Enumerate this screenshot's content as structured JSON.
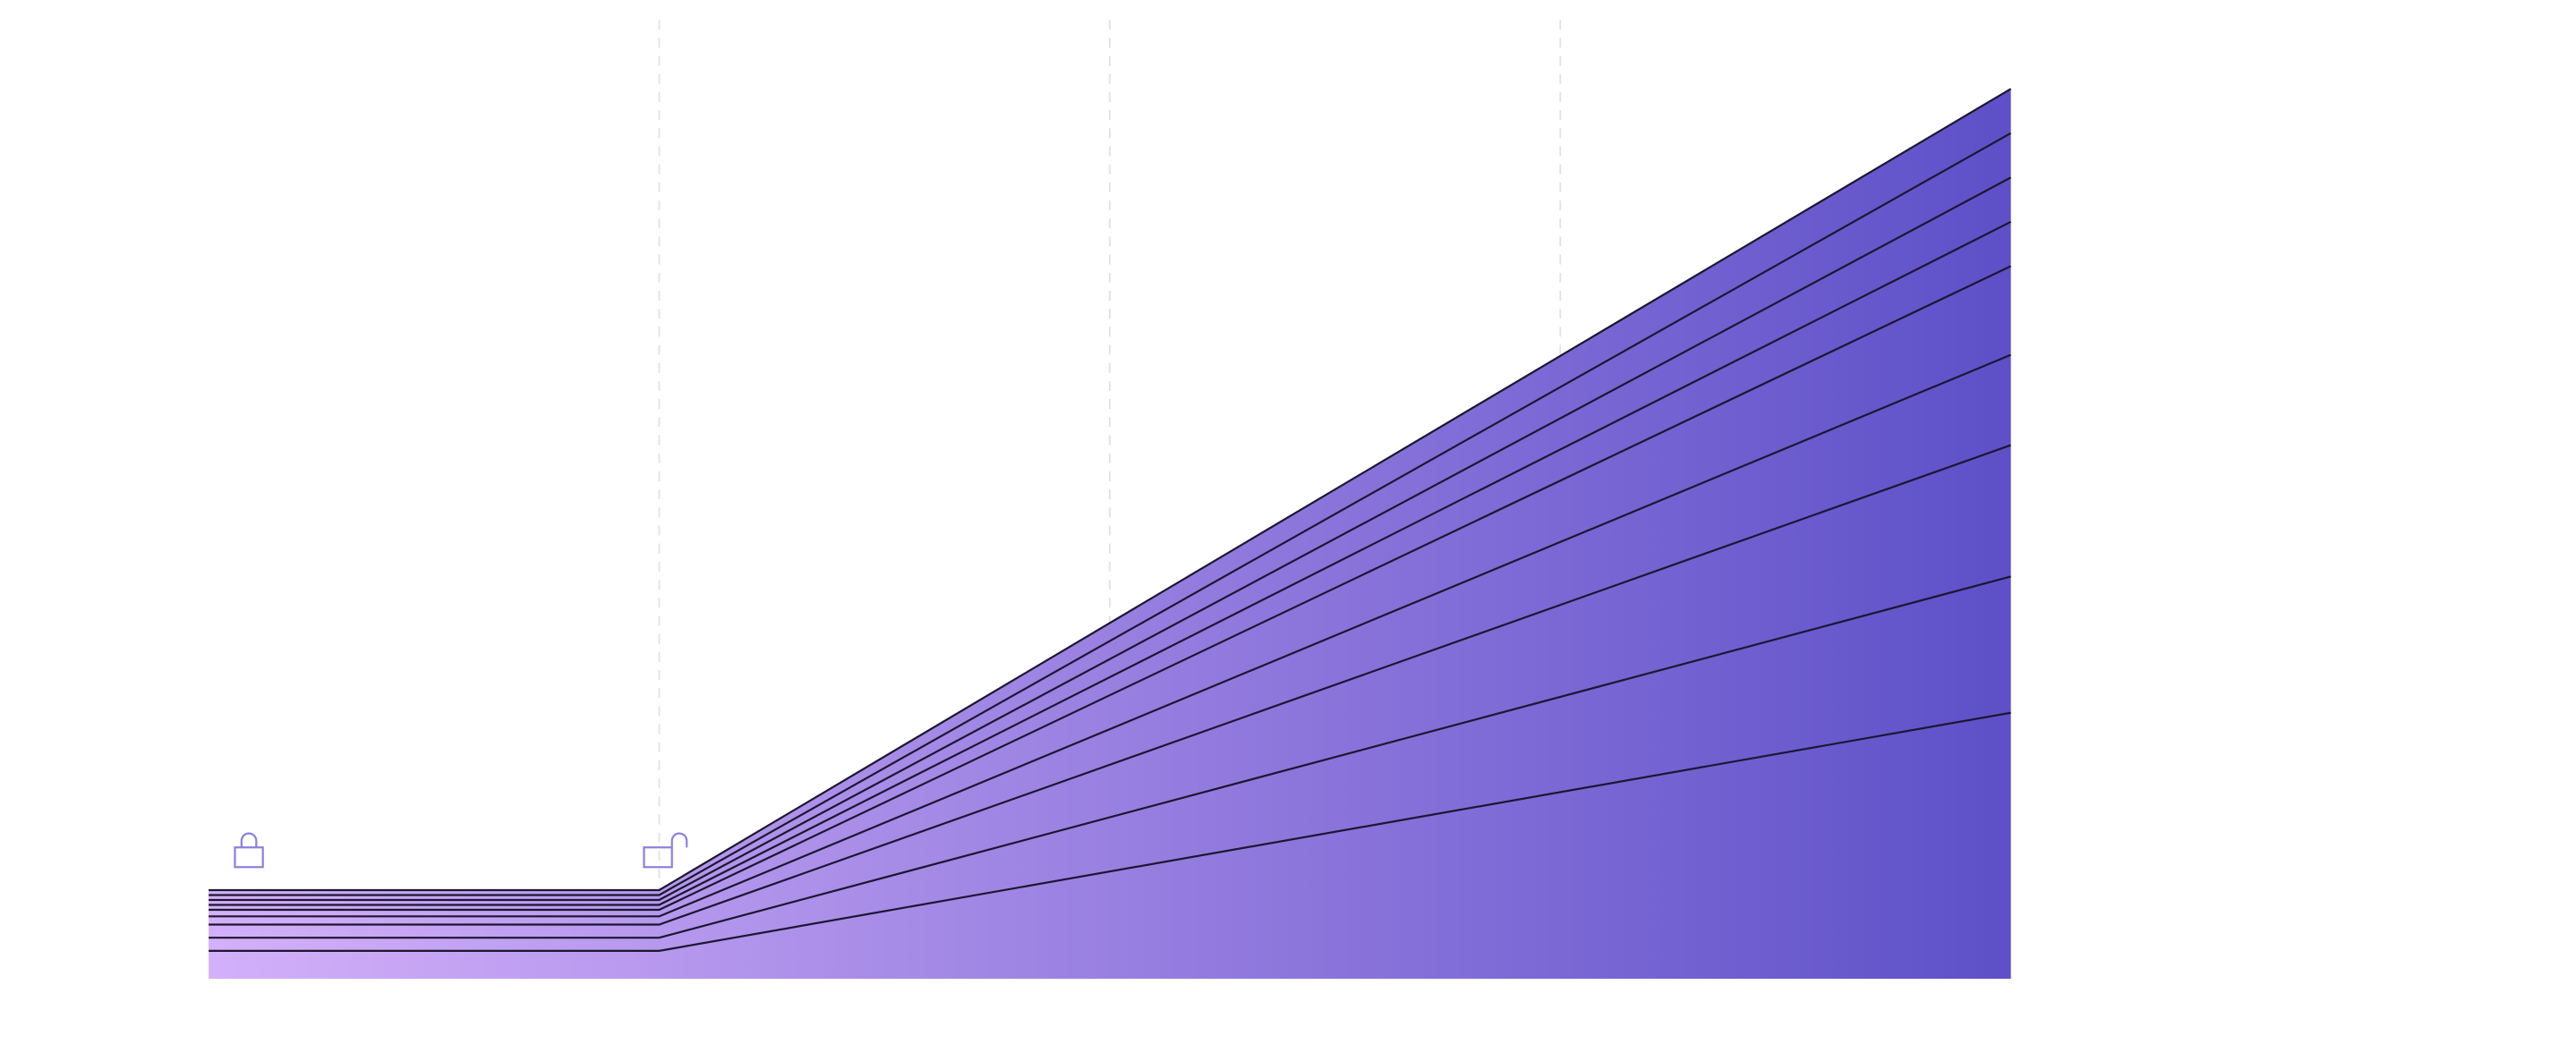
{
  "chart_data": {
    "type": "line",
    "x": [
      0,
      1,
      4
    ],
    "xlim": [
      0,
      4
    ],
    "xticks": [
      1,
      2,
      3
    ],
    "ylim": [
      0,
      584
    ],
    "grid": true,
    "fill_gradient": [
      "#d4b0fa",
      "#5d50c8"
    ],
    "series": [
      {
        "color": "#1c1730",
        "values": [
          54,
          54,
          542
        ]
      },
      {
        "color": "#1c1730",
        "values": [
          51,
          51,
          515
        ]
      },
      {
        "color": "#1c1730",
        "values": [
          48,
          48,
          488
        ]
      },
      {
        "color": "#1c1730",
        "values": [
          45,
          45,
          461
        ]
      },
      {
        "color": "#1c1730",
        "values": [
          42,
          42,
          434
        ]
      },
      {
        "color": "#1c1730",
        "values": [
          38,
          38,
          380
        ]
      },
      {
        "color": "#1c1730",
        "values": [
          33,
          33,
          325
        ]
      },
      {
        "color": "#1c1730",
        "values": [
          25,
          25,
          245
        ]
      },
      {
        "color": "#1c1730",
        "values": [
          17,
          17,
          162
        ]
      }
    ]
  }
}
